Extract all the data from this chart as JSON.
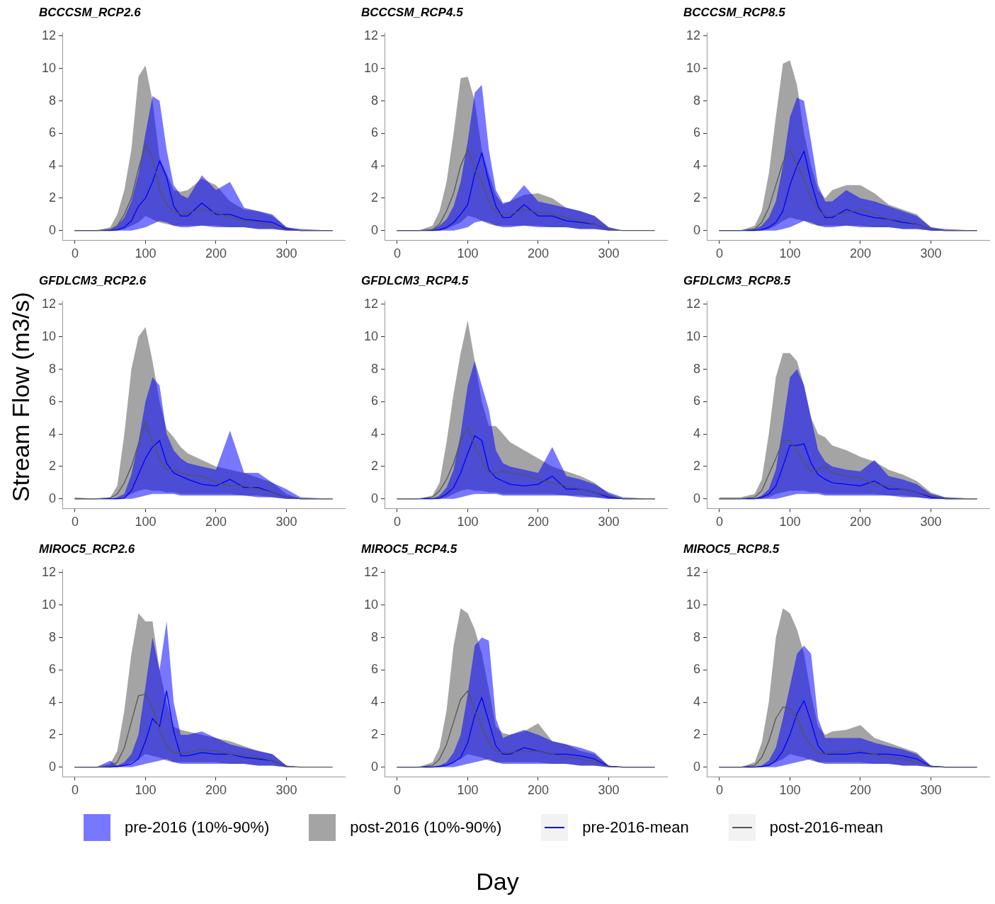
{
  "chart_data": [
    {
      "type": "line",
      "title": "BCCCSM_RCP2.6",
      "x": [
        0,
        30,
        50,
        60,
        70,
        80,
        90,
        100,
        110,
        120,
        130,
        140,
        150,
        160,
        180,
        200,
        220,
        240,
        260,
        280,
        300,
        320,
        365
      ],
      "xlim": [
        -18,
        383
      ],
      "xticks": [
        0,
        100,
        200,
        300
      ],
      "ylim": [
        -0.6,
        12.2
      ],
      "yticks": [
        0,
        2,
        4,
        6,
        8,
        10,
        12
      ],
      "series": [
        {
          "color": "#0000ff",
          "values": [
            0,
            0,
            0,
            0.05,
            0.2,
            0.6,
            1.5,
            2,
            3,
            4.3,
            3.3,
            1.5,
            0.9,
            0.9,
            1.7,
            1,
            1,
            0.7,
            0.6,
            0.5,
            0.1,
            0,
            0
          ],
          "lower": [
            0,
            0,
            0,
            0,
            0,
            0,
            0.1,
            0.2,
            0.4,
            0.6,
            0.5,
            0.3,
            0.2,
            0.2,
            0.3,
            0.2,
            0.2,
            0.2,
            0.1,
            0.1,
            0,
            0,
            0
          ],
          "upper": [
            0,
            0,
            0.1,
            0.3,
            0.8,
            1.8,
            3.5,
            6,
            8.3,
            8,
            5,
            2.8,
            2.2,
            2,
            3.4,
            2.5,
            3,
            1.4,
            1.2,
            1,
            0.2,
            0.1,
            0
          ]
        },
        {
          "color": "#555555",
          "values": [
            0,
            0,
            0.05,
            0.3,
            1,
            2,
            3.8,
            5.3,
            4.5,
            2.5,
            1.6,
            1.2,
            1,
            1.1,
            1.3,
            1.1,
            0.8,
            0.6,
            0.5,
            0.3,
            0.05,
            0,
            0
          ],
          "lower": [
            0,
            0,
            0,
            0,
            0.1,
            0.3,
            0.5,
            0.9,
            0.7,
            0.5,
            0.4,
            0.3,
            0.3,
            0.3,
            0.3,
            0.3,
            0.2,
            0.2,
            0.1,
            0.1,
            0,
            0,
            0
          ],
          "upper": [
            0,
            0,
            0.2,
            1,
            2.5,
            5,
            9.5,
            10.2,
            8,
            4.5,
            3.5,
            2.5,
            2.4,
            2.5,
            3.2,
            2.8,
            1.8,
            1.3,
            1.2,
            0.9,
            0.2,
            0,
            0
          ]
        }
      ]
    },
    {
      "type": "line",
      "title": "BCCCSM_RCP4.5",
      "x": [
        0,
        30,
        50,
        60,
        70,
        80,
        90,
        100,
        110,
        120,
        130,
        140,
        150,
        160,
        180,
        200,
        220,
        240,
        260,
        280,
        300,
        320,
        365
      ],
      "xlim": [
        -18,
        383
      ],
      "xticks": [
        0,
        100,
        200,
        300
      ],
      "ylim": [
        -0.6,
        12.2
      ],
      "yticks": [
        0,
        2,
        4,
        6,
        8,
        10,
        12
      ],
      "series": [
        {
          "color": "#0000ff",
          "values": [
            0,
            0,
            0,
            0.05,
            0.2,
            0.5,
            1,
            1.6,
            3.5,
            4.8,
            3,
            1.5,
            0.8,
            0.8,
            1.6,
            0.9,
            0.9,
            0.6,
            0.5,
            0.4,
            0.05,
            null,
            null
          ],
          "lower": [
            0,
            0,
            0,
            0,
            0,
            0,
            0.1,
            0.2,
            0.5,
            0.6,
            0.5,
            0.3,
            0.2,
            0.2,
            0.3,
            0.2,
            0.2,
            0.2,
            0.1,
            0.1,
            0,
            0,
            0
          ],
          "upper": [
            0,
            0,
            0.1,
            0.3,
            0.7,
            1.5,
            3,
            5.5,
            8.5,
            9,
            5,
            2.5,
            1.7,
            1.8,
            2.8,
            1.8,
            1.6,
            1.4,
            1.2,
            0.9,
            0.2,
            0,
            0
          ]
        },
        {
          "color": "#555555",
          "values": [
            0,
            0,
            0.05,
            0.4,
            1.2,
            2.3,
            4,
            5,
            3.8,
            3,
            1.8,
            1.1,
            1,
            1,
            1.3,
            1.1,
            1,
            0.8,
            0.6,
            0.4,
            0.05,
            0,
            0
          ],
          "lower": [
            0,
            0,
            0,
            0,
            0.1,
            0.3,
            0.5,
            0.9,
            0.8,
            0.6,
            0.4,
            0.3,
            0.3,
            0.3,
            0.3,
            0.3,
            0.2,
            0.2,
            0.1,
            0.1,
            0,
            0,
            0
          ],
          "upper": [
            0,
            0,
            0.3,
            1.2,
            3,
            6,
            9.4,
            9.5,
            8,
            5,
            3.5,
            2.2,
            1.6,
            1.8,
            2.2,
            2.3,
            2,
            1.4,
            1.2,
            0.9,
            0.2,
            0,
            0
          ]
        }
      ]
    },
    {
      "type": "line",
      "title": "BCCCSM_RCP8.5",
      "x": [
        0,
        30,
        50,
        60,
        70,
        80,
        90,
        100,
        110,
        120,
        130,
        140,
        150,
        160,
        180,
        200,
        220,
        240,
        260,
        280,
        300,
        320,
        365
      ],
      "xlim": [
        -18,
        383
      ],
      "xticks": [
        0,
        100,
        200,
        300
      ],
      "ylim": [
        -0.6,
        12.2
      ],
      "yticks": [
        0,
        2,
        4,
        6,
        8,
        10,
        12
      ],
      "series": [
        {
          "color": "#0000ff",
          "values": [
            0,
            0,
            0,
            0.05,
            0.2,
            0.5,
            1.2,
            2.8,
            4,
            4.9,
            3,
            1.5,
            0.8,
            0.8,
            1.3,
            1,
            0.8,
            0.7,
            0.5,
            0.4,
            0.05,
            0,
            0
          ],
          "lower": [
            0,
            0,
            0,
            0,
            0,
            0,
            0.1,
            0.2,
            0.4,
            0.6,
            0.5,
            0.3,
            0.2,
            0.2,
            0.3,
            0.2,
            0.2,
            0.2,
            0.1,
            0.1,
            0,
            0,
            0
          ],
          "upper": [
            0,
            0,
            0.1,
            0.3,
            0.8,
            1.8,
            4,
            7,
            8.2,
            8,
            5.5,
            2.8,
            1.8,
            1.8,
            2.5,
            2,
            1.8,
            1.5,
            1.2,
            0.9,
            0.2,
            0.1,
            0
          ]
        },
        {
          "color": "#555555",
          "values": [
            0,
            0,
            0.1,
            0.5,
            1.4,
            2.8,
            4.2,
            5,
            4,
            3.2,
            2,
            1.3,
            0.9,
            0.9,
            1.1,
            1.3,
            1,
            0.7,
            0.6,
            0.4,
            0.05,
            0,
            0
          ],
          "lower": [
            0,
            0,
            0,
            0,
            0.1,
            0.3,
            0.6,
            0.8,
            0.7,
            0.6,
            0.4,
            0.3,
            0.3,
            0.3,
            0.3,
            0.3,
            0.2,
            0.2,
            0.1,
            0.1,
            0,
            0,
            0
          ],
          "upper": [
            0,
            0,
            0.3,
            1.2,
            3.5,
            7,
            10.3,
            10.5,
            9,
            6,
            4,
            2.5,
            2,
            2.5,
            2.8,
            2.8,
            2.3,
            1.6,
            1.3,
            1,
            0.2,
            0,
            0
          ]
        }
      ]
    },
    {
      "type": "line",
      "title": "GFDLCM3_RCP2.6",
      "ylabel": "Stream Flow (m3/s)",
      "x": [
        0,
        30,
        50,
        60,
        70,
        80,
        90,
        100,
        110,
        120,
        130,
        140,
        150,
        160,
        180,
        200,
        220,
        240,
        260,
        280,
        300,
        320,
        365
      ],
      "xlim": [
        -18,
        383
      ],
      "xticks": [
        0,
        100,
        200,
        300
      ],
      "ylim": [
        -0.6,
        12.2
      ],
      "yticks": [
        0,
        2,
        4,
        6,
        8,
        10,
        12
      ],
      "series": [
        {
          "color": "#0000ff",
          "values": [
            0,
            0,
            0,
            0,
            0.05,
            0.5,
            1.5,
            2.5,
            3.2,
            3.6,
            2.2,
            1.6,
            1.4,
            1.2,
            0.9,
            0.8,
            1.2,
            0.7,
            0.7,
            0.4,
            0.1,
            0,
            0
          ],
          "lower": [
            0,
            0,
            0,
            0,
            0,
            0,
            0.1,
            0.2,
            0.3,
            0.3,
            0.3,
            0.3,
            0.2,
            0.2,
            0.2,
            0.2,
            0.2,
            0.2,
            0.1,
            0.1,
            0,
            0,
            0
          ],
          "upper": [
            0,
            0,
            0,
            0.1,
            0.3,
            1.5,
            3.5,
            6,
            7.5,
            7,
            4,
            3,
            2.5,
            2.2,
            2,
            1.8,
            4.2,
            1.6,
            1.6,
            1,
            0.6,
            0.1,
            0
          ]
        },
        {
          "color": "#555555",
          "values": [
            0,
            0,
            0.05,
            0.3,
            1,
            2,
            3.4,
            4.7,
            3.5,
            2.5,
            1.8,
            1.8,
            1.6,
            1.5,
            1.4,
            1,
            0.8,
            0.8,
            0.6,
            0.4,
            0.1,
            0,
            0
          ],
          "lower": [
            0,
            0,
            0,
            0,
            0.1,
            0.3,
            0.5,
            0.6,
            0.5,
            0.5,
            0.4,
            0.4,
            0.3,
            0.3,
            0.3,
            0.3,
            0.3,
            0.2,
            0.2,
            0.1,
            0,
            0,
            0
          ],
          "upper": [
            0.1,
            0,
            0.1,
            0.8,
            4,
            8,
            10,
            10.6,
            8.5,
            6,
            4.3,
            3.8,
            3.2,
            2.8,
            2.4,
            2,
            1.8,
            1.6,
            1.3,
            1,
            0.3,
            0,
            0
          ]
        }
      ]
    },
    {
      "type": "line",
      "title": "GFDLCM3_RCP4.5",
      "x": [
        0,
        30,
        50,
        60,
        70,
        80,
        90,
        100,
        110,
        120,
        130,
        140,
        150,
        160,
        180,
        200,
        220,
        240,
        260,
        280,
        300,
        320,
        365
      ],
      "xlim": [
        -18,
        383
      ],
      "xticks": [
        0,
        100,
        200,
        300
      ],
      "ylim": [
        -0.6,
        12.2
      ],
      "yticks": [
        0,
        2,
        4,
        6,
        8,
        10,
        12
      ],
      "series": [
        {
          "color": "#0000ff",
          "values": [
            0,
            0,
            0,
            0.05,
            0.3,
            0.7,
            1.6,
            2.8,
            3.9,
            3.6,
            1.8,
            1.3,
            1.1,
            0.9,
            0.8,
            0.9,
            1.4,
            0.6,
            0.6,
            0.4,
            0.1,
            0,
            0
          ],
          "lower": [
            0,
            0,
            0,
            0,
            0,
            0,
            0.1,
            0.2,
            0.3,
            0.3,
            0.3,
            0.3,
            0.2,
            0.2,
            0.2,
            0.2,
            0.2,
            0.2,
            0.1,
            0.1,
            0,
            0,
            0
          ],
          "upper": [
            0,
            0,
            0,
            0.2,
            0.7,
            1.8,
            4,
            7,
            8.5,
            7,
            5.5,
            3,
            2.2,
            2,
            1.8,
            1.6,
            3.2,
            1.4,
            1.2,
            0.9,
            0.4,
            0.1,
            0
          ]
        },
        {
          "color": "#555555",
          "values": [
            0,
            0,
            0.1,
            0.5,
            1.2,
            2.2,
            3.6,
            4.4,
            3.3,
            2.4,
            1.6,
            1.6,
            1.7,
            1.6,
            1.5,
            1.2,
            1,
            0.8,
            0.6,
            0.4,
            0.2,
            0,
            0
          ],
          "lower": [
            0,
            0,
            0,
            0,
            0.1,
            0.3,
            0.5,
            0.6,
            0.5,
            0.5,
            0.4,
            0.4,
            0.3,
            0.3,
            0.3,
            0.3,
            0.3,
            0.2,
            0.2,
            0.1,
            0,
            0,
            0
          ],
          "upper": [
            0,
            0,
            0.2,
            1,
            3.5,
            6.5,
            9,
            11,
            8.5,
            6,
            4.5,
            4.5,
            4,
            3.5,
            3,
            2.5,
            2,
            1.7,
            1.4,
            1,
            0.3,
            0,
            0
          ]
        }
      ]
    },
    {
      "type": "line",
      "title": "GFDLCM3_RCP8.5",
      "x": [
        0,
        30,
        50,
        60,
        70,
        80,
        90,
        100,
        110,
        120,
        130,
        140,
        150,
        160,
        180,
        200,
        220,
        240,
        260,
        280,
        300,
        320,
        365
      ],
      "xlim": [
        -18,
        383
      ],
      "xticks": [
        0,
        100,
        200,
        300
      ],
      "ylim": [
        -0.6,
        12.2
      ],
      "yticks": [
        0,
        2,
        4,
        6,
        8,
        10,
        12
      ],
      "series": [
        {
          "color": "#0000ff",
          "values": [
            0,
            0,
            0,
            0.1,
            0.3,
            0.8,
            2,
            3.3,
            3.3,
            3.4,
            2.2,
            1.5,
            1.2,
            1,
            0.9,
            0.8,
            1.1,
            0.6,
            0.6,
            0.4,
            0.1,
            0,
            0
          ],
          "lower": [
            0,
            0,
            0,
            0,
            0,
            0,
            0.1,
            0.2,
            0.3,
            0.3,
            0.3,
            0.3,
            0.2,
            0.2,
            0.2,
            0.2,
            0.2,
            0.2,
            0.1,
            0.1,
            0,
            0,
            0
          ],
          "upper": [
            0,
            0,
            0,
            0.2,
            0.6,
            1.8,
            4.5,
            7.5,
            8,
            7,
            5,
            3,
            2.3,
            2,
            1.8,
            1.7,
            2.4,
            1.4,
            1.2,
            0.9,
            0.3,
            0.1,
            0
          ]
        },
        {
          "color": "#555555",
          "values": [
            0,
            0,
            0.1,
            0.5,
            1.5,
            2.5,
            3.6,
            3.6,
            3,
            2.2,
            1.7,
            1.8,
            2,
            1.6,
            1.4,
            1.3,
            0.9,
            0.8,
            0.6,
            0.4,
            0.2,
            0,
            0
          ],
          "lower": [
            0,
            0,
            0,
            0,
            0.1,
            0.3,
            0.4,
            0.5,
            0.5,
            0.5,
            0.4,
            0.4,
            0.3,
            0.3,
            0.3,
            0.3,
            0.3,
            0.2,
            0.2,
            0.1,
            0,
            0,
            0
          ],
          "upper": [
            0.1,
            0.1,
            0.3,
            1.2,
            4,
            7.5,
            9,
            9,
            8.5,
            7,
            5,
            4,
            3.8,
            3.3,
            3,
            2.6,
            2.3,
            1.8,
            1.5,
            1.1,
            0.4,
            0.1,
            0
          ]
        }
      ]
    },
    {
      "type": "line",
      "title": "MIROC5_RCP2.6",
      "x": [
        0,
        30,
        50,
        60,
        70,
        80,
        90,
        100,
        110,
        120,
        130,
        140,
        150,
        160,
        180,
        200,
        220,
        240,
        260,
        280,
        300,
        320,
        365
      ],
      "xlim": [
        -18,
        383
      ],
      "xticks": [
        0,
        100,
        200,
        300
      ],
      "ylim": [
        -0.6,
        12.2
      ],
      "yticks": [
        0,
        2,
        4,
        6,
        8,
        10,
        12
      ],
      "series": [
        {
          "color": "#0000ff",
          "values": [
            0,
            0,
            0,
            0.05,
            0.1,
            0.2,
            0.5,
            1.6,
            3,
            2.5,
            4.7,
            2.2,
            0.7,
            0.7,
            0.9,
            0.8,
            0.8,
            0.6,
            0.5,
            0.4,
            0.05,
            null,
            null
          ],
          "lower": [
            0,
            0,
            0,
            0,
            0,
            0,
            0.1,
            0.2,
            0.3,
            0.4,
            0.5,
            0.3,
            0.2,
            0.2,
            0.2,
            0.2,
            0.2,
            0.2,
            0.1,
            0.1,
            0,
            0,
            0
          ],
          "upper": [
            0,
            0,
            0.4,
            0.1,
            0.3,
            0.8,
            2,
            5,
            8,
            6,
            9,
            4,
            2,
            2,
            2.2,
            1.8,
            1.4,
            1.2,
            1,
            0.8,
            0.1,
            0,
            0
          ]
        },
        {
          "color": "#555555",
          "values": [
            0,
            0,
            0.05,
            0.3,
            1.2,
            2.8,
            4.4,
            4.5,
            3.7,
            2.3,
            1.3,
            0.9,
            0.9,
            0.9,
            1.1,
            1,
            0.8,
            0.7,
            0.6,
            0.4,
            0.05,
            0,
            0
          ],
          "lower": [
            0,
            0,
            0,
            0,
            0.1,
            0.3,
            0.5,
            0.8,
            0.7,
            0.6,
            0.4,
            0.3,
            0.3,
            0.3,
            0.3,
            0.3,
            0.2,
            0.2,
            0.1,
            0.1,
            0,
            0,
            0
          ],
          "upper": [
            0,
            0,
            0.2,
            1,
            3.5,
            7,
            9.5,
            9,
            9,
            6,
            4,
            2.5,
            2.3,
            2.2,
            2,
            1.8,
            1.6,
            1.3,
            1,
            0.8,
            0.1,
            0,
            0
          ]
        }
      ]
    },
    {
      "type": "line",
      "title": "MIROC5_RCP4.5",
      "xlabel": "Day",
      "x": [
        0,
        30,
        50,
        60,
        70,
        80,
        90,
        100,
        110,
        120,
        130,
        140,
        150,
        160,
        180,
        200,
        220,
        240,
        260,
        280,
        300,
        320,
        365
      ],
      "xlim": [
        -18,
        383
      ],
      "xticks": [
        0,
        100,
        200,
        300
      ],
      "ylim": [
        -0.6,
        12.2
      ],
      "yticks": [
        0,
        2,
        4,
        6,
        8,
        10,
        12
      ],
      "series": [
        {
          "color": "#0000ff",
          "values": [
            0,
            0,
            0,
            0.05,
            0.1,
            0.3,
            0.6,
            1.5,
            3.2,
            4.3,
            2.8,
            1.3,
            0.8,
            0.8,
            1.2,
            1,
            0.8,
            0.8,
            0.7,
            0.5,
            0.05,
            0,
            0
          ],
          "lower": [
            0,
            0,
            0,
            0,
            0,
            0,
            0.1,
            0.2,
            0.3,
            0.4,
            0.5,
            0.3,
            0.2,
            0.2,
            0.2,
            0.2,
            0.2,
            0.2,
            0.1,
            0.1,
            0,
            0,
            0
          ],
          "upper": [
            0,
            0,
            0,
            0.1,
            0.3,
            0.9,
            2,
            4.5,
            7.5,
            8,
            7.8,
            3,
            1.8,
            2,
            2.3,
            2,
            1.6,
            1.4,
            1.2,
            0.9,
            0.1,
            0,
            0
          ]
        },
        {
          "color": "#555555",
          "values": [
            0,
            0,
            0.1,
            0.5,
            1.4,
            2.8,
            4.2,
            4.7,
            3.5,
            2.5,
            1.5,
            1,
            0.9,
            0.9,
            1,
            1,
            0.8,
            0.6,
            0.5,
            0.3,
            0.05,
            0,
            0
          ],
          "lower": [
            0,
            0,
            0,
            0,
            0.1,
            0.3,
            0.5,
            0.8,
            0.7,
            0.6,
            0.4,
            0.3,
            0.3,
            0.3,
            0.3,
            0.3,
            0.2,
            0.2,
            0.1,
            0.1,
            0,
            0,
            0
          ],
          "upper": [
            0,
            0,
            0.3,
            1.2,
            3.5,
            7.5,
            9.8,
            9.5,
            8.5,
            7,
            4.8,
            2.5,
            2.1,
            2,
            2.2,
            2.7,
            1.6,
            1.4,
            1,
            0.8,
            0.1,
            0,
            0
          ]
        }
      ]
    },
    {
      "type": "line",
      "title": "MIROC5_RCP8.5",
      "legend": "bottom",
      "annotations": [
        "pre-2016 (10%-90%)",
        "post-2016 (10%-90%)"
      ],
      "x": [
        0,
        30,
        50,
        60,
        70,
        80,
        90,
        100,
        110,
        120,
        130,
        140,
        150,
        160,
        180,
        200,
        220,
        240,
        260,
        280,
        300,
        320,
        365
      ],
      "xlim": [
        -18,
        383
      ],
      "xticks": [
        0,
        100,
        200,
        300
      ],
      "ylim": [
        -0.6,
        12.2
      ],
      "yticks": [
        0,
        2,
        4,
        6,
        8,
        10,
        12
      ],
      "series": [
        {
          "name": "pre-2016-mean",
          "color": "#0000ff",
          "values": [
            0,
            0,
            0,
            0.05,
            0.1,
            0.4,
            1,
            2,
            3.3,
            4.1,
            2.8,
            1.3,
            0.8,
            0.8,
            0.8,
            0.9,
            0.8,
            0.8,
            0.7,
            0.5,
            0.05,
            0,
            0
          ],
          "lower": [
            0,
            0,
            0,
            0,
            0,
            0,
            0.1,
            0.2,
            0.3,
            0.4,
            0.5,
            0.3,
            0.2,
            0.2,
            0.2,
            0.2,
            0.2,
            0.2,
            0.1,
            0.1,
            0,
            0,
            0
          ],
          "upper": [
            0,
            0,
            0,
            0.1,
            0.4,
            1.2,
            3,
            5,
            7,
            7.5,
            7,
            3,
            1.8,
            1.8,
            1.8,
            1.8,
            1.5,
            1.3,
            1.1,
            0.8,
            0.1,
            0,
            0
          ]
        },
        {
          "name": "post-2016-mean",
          "color": "#555555",
          "values": [
            0,
            0,
            0.1,
            0.6,
            1.6,
            3,
            3.7,
            3.6,
            3,
            2,
            1.3,
            0.9,
            0.8,
            0.9,
            1,
            1,
            0.8,
            0.6,
            0.5,
            0.3,
            0.05,
            0,
            0
          ],
          "lower": [
            0,
            0,
            0,
            0,
            0.1,
            0.3,
            0.5,
            0.8,
            0.7,
            0.6,
            0.4,
            0.3,
            0.3,
            0.3,
            0.3,
            0.3,
            0.2,
            0.2,
            0.1,
            0.1,
            0,
            0,
            0
          ],
          "upper": [
            0,
            0,
            0.3,
            1.5,
            4,
            8,
            9.8,
            9.5,
            8.5,
            7,
            4.5,
            2.5,
            2,
            2.2,
            2.3,
            2.6,
            1.8,
            1.5,
            1.2,
            0.9,
            0.1,
            0,
            0
          ]
        }
      ]
    }
  ]
}
